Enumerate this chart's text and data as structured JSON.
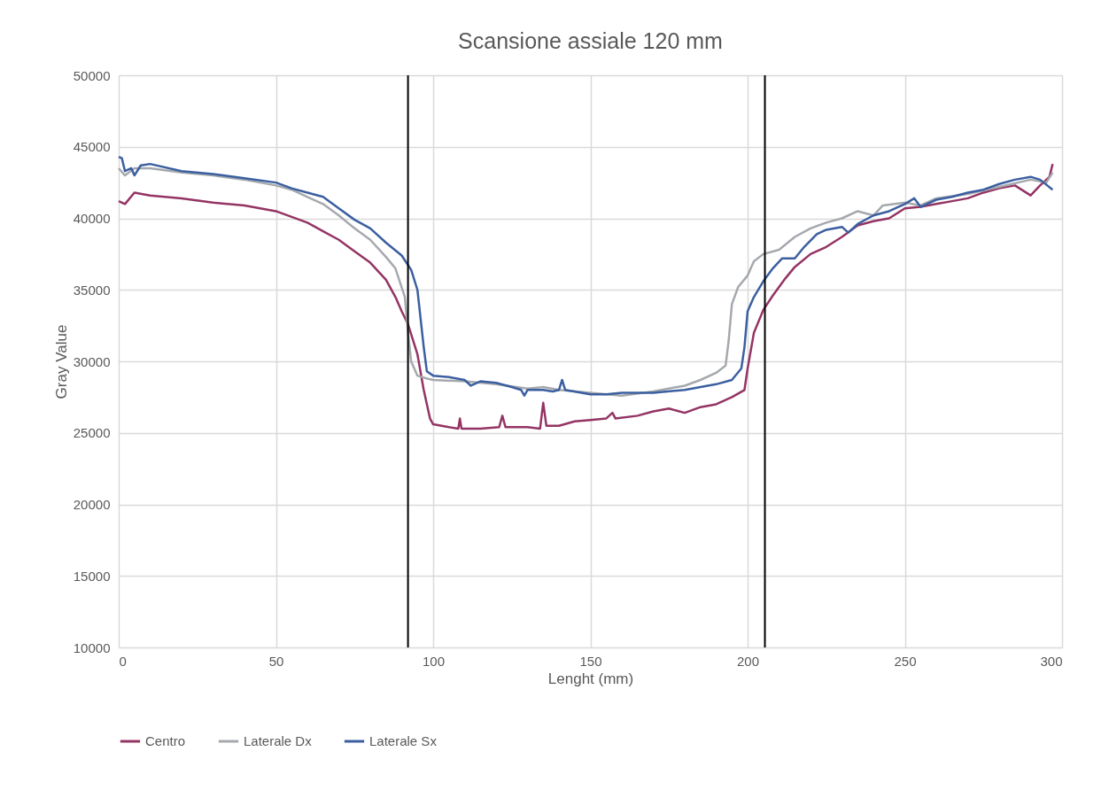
{
  "chart_data": {
    "type": "line",
    "title": "Scansione assiale 120 mm",
    "xlabel": "Lenght (mm)",
    "ylabel": "Gray Value",
    "xlim": [
      0,
      300
    ],
    "xticks": [
      0,
      50,
      100,
      150,
      200,
      250,
      300
    ],
    "ylim": [
      10000,
      50000
    ],
    "yticks": [
      10000,
      15000,
      20000,
      25000,
      30000,
      35000,
      40000,
      45000,
      50000
    ],
    "grid": true,
    "legend": "bottom",
    "line_style": "solid",
    "ref_lines": [
      {
        "axis": "x",
        "value": 92,
        "color": "#000000"
      },
      {
        "axis": "x",
        "value": 205.5,
        "color": "#000000"
      }
    ],
    "series": [
      {
        "name": "Centro",
        "color": "#943464",
        "x": [
          0,
          2,
          5,
          10,
          20,
          30,
          40,
          50,
          55,
          60,
          65,
          70,
          75,
          80,
          85,
          88,
          90,
          92,
          95,
          97,
          99,
          100,
          105,
          108,
          108.5,
          109,
          115,
          121,
          122,
          123,
          130,
          134,
          135,
          136,
          140,
          145,
          150,
          155,
          157,
          158,
          165,
          170,
          175,
          180,
          185,
          190,
          195,
          199,
          200,
          202,
          205,
          208,
          212,
          215,
          220,
          225,
          230,
          235,
          240,
          245,
          250,
          255,
          260,
          265,
          270,
          275,
          280,
          285,
          290,
          293,
          296,
          297
        ],
        "values": [
          41200,
          41000,
          41800,
          41600,
          41400,
          41100,
          40900,
          40500,
          40100,
          39700,
          39100,
          38500,
          37700,
          36900,
          35700,
          34500,
          33500,
          32600,
          30500,
          28000,
          26000,
          25600,
          25400,
          25300,
          26000,
          25300,
          25300,
          25400,
          26200,
          25400,
          25400,
          25300,
          27100,
          25500,
          25500,
          25800,
          25900,
          26000,
          26400,
          26000,
          26200,
          26500,
          26700,
          26400,
          26800,
          27000,
          27500,
          28000,
          29500,
          32000,
          33600,
          34600,
          35800,
          36600,
          37500,
          38000,
          38700,
          39500,
          39800,
          40000,
          40700,
          40800,
          41000,
          41200,
          41400,
          41800,
          42100,
          42300,
          41600,
          42300,
          42900,
          43800
        ]
      },
      {
        "name": "Laterale Dx",
        "color": "#a5a9ae",
        "x": [
          0,
          2,
          5,
          10,
          20,
          30,
          40,
          50,
          55,
          60,
          65,
          70,
          75,
          80,
          85,
          88,
          91,
          92,
          93,
          95,
          98,
          100,
          110,
          120,
          130,
          135,
          140,
          150,
          160,
          170,
          180,
          185,
          190,
          193,
          194,
          195,
          197,
          200,
          202,
          205,
          210,
          215,
          220,
          225,
          230,
          235,
          240,
          243,
          250,
          255,
          260,
          270,
          280,
          290,
          295,
          297
        ],
        "values": [
          43500,
          43000,
          43500,
          43500,
          43200,
          43000,
          42700,
          42300,
          42000,
          41500,
          41000,
          40200,
          39300,
          38500,
          37300,
          36500,
          34500,
          32000,
          30000,
          29000,
          28800,
          28700,
          28600,
          28400,
          28100,
          28200,
          28000,
          27800,
          27600,
          27900,
          28300,
          28700,
          29200,
          29700,
          31500,
          34000,
          35200,
          36000,
          37000,
          37500,
          37800,
          38700,
          39300,
          39700,
          40000,
          40500,
          40200,
          40900,
          41100,
          40900,
          41400,
          41700,
          42200,
          42700,
          42500,
          43200
        ]
      },
      {
        "name": "Laterale Sx",
        "color": "#3b5fa0",
        "x": [
          0,
          1,
          2,
          4,
          5,
          7,
          10,
          20,
          30,
          40,
          50,
          55,
          60,
          65,
          70,
          75,
          80,
          85,
          90,
          93,
          95,
          96,
          97,
          98,
          100,
          105,
          110,
          112,
          115,
          120,
          125,
          128,
          129,
          130,
          135,
          138,
          140,
          141,
          142,
          150,
          155,
          160,
          170,
          180,
          185,
          190,
          195,
          198,
          199,
          200,
          202,
          205,
          208,
          211,
          215,
          218,
          222,
          225,
          230,
          232,
          235,
          240,
          245,
          250,
          253,
          255,
          260,
          265,
          270,
          275,
          280,
          285,
          290,
          293,
          297
        ],
        "values": [
          44300,
          44200,
          43300,
          43500,
          43000,
          43700,
          43800,
          43300,
          43100,
          42800,
          42500,
          42100,
          41800,
          41500,
          40700,
          39900,
          39300,
          38300,
          37400,
          36400,
          35000,
          33000,
          31000,
          29300,
          29000,
          28900,
          28700,
          28300,
          28600,
          28500,
          28200,
          28000,
          27600,
          28000,
          28000,
          27900,
          28000,
          28700,
          28000,
          27700,
          27700,
          27800,
          27800,
          28000,
          28200,
          28400,
          28700,
          29500,
          31000,
          33500,
          34500,
          35600,
          36500,
          37200,
          37200,
          38000,
          38900,
          39200,
          39400,
          39000,
          39600,
          40200,
          40500,
          41000,
          41400,
          40800,
          41300,
          41500,
          41800,
          42000,
          42400,
          42700,
          42900,
          42700,
          42000
        ]
      }
    ]
  }
}
